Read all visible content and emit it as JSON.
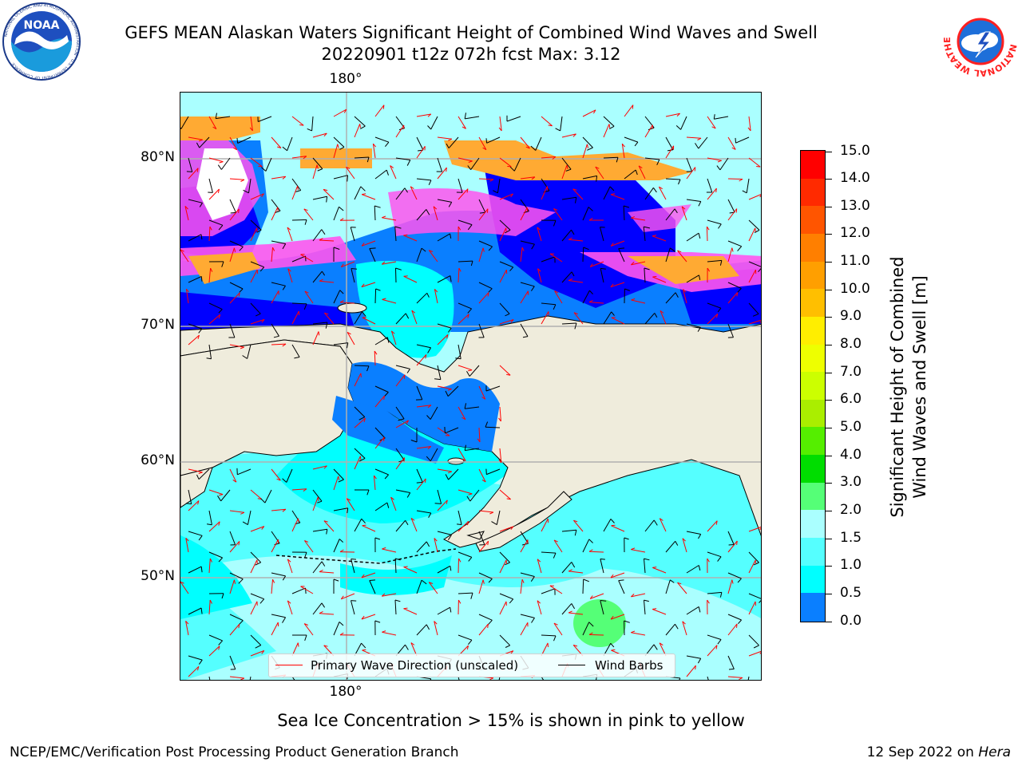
{
  "header": {
    "title_line1": "GEFS MEAN Alaskan Waters Significant Height of Combined Wind Waves and Swell",
    "title_line2": "20220901 t12z 072h fcst   Max: 3.12"
  },
  "logos": {
    "left": "NOAA",
    "left_ring_text": "NATIONAL OCEANIC AND ATMOSPHERIC ADMINISTRATION · U.S. DEPARTMENT OF COMMERCE",
    "right_ring_text": "NATIONAL WEATHER SERVICE"
  },
  "map": {
    "lon_label_top": "180°",
    "lon_label_bottom": "180°",
    "lat_labels": [
      "80°N",
      "70°N",
      "60°N",
      "50°N"
    ],
    "max_value": 3.12,
    "colors": {
      "land": "#efecdc",
      "ice_pink": "#ff55ee",
      "ice_orange": "#ffaa33",
      "wave_0_0.5": "#0000ff",
      "wave_0.5_1.0": "#0a7fff",
      "wave_1.0_1.5": "#00ffff",
      "wave_1.5_2.0": "#55ffff",
      "wave_2.0_3.0": "#aaffff",
      "wave_3.0_4.0": "#55ff77",
      "arrow": "#ff0000",
      "barb": "#000000"
    },
    "legend": {
      "wave_direction": "Primary Wave Direction (unscaled)",
      "wind_barbs": "Wind Barbs"
    }
  },
  "colorbar": {
    "title_line1": "Significant Height of Combined",
    "title_line2": "Wind Waves and Swell [m]",
    "tick_labels": [
      "15.0",
      "14.0",
      "13.0",
      "12.0",
      "11.0",
      "10.0",
      "9.0",
      "8.0",
      "7.0",
      "6.0",
      "5.0",
      "4.0",
      "3.0",
      "2.0",
      "1.5",
      "1.0",
      "0.5",
      "0.0"
    ],
    "colors": [
      "#ff0000",
      "#ff2a00",
      "#ff5500",
      "#ff7f00",
      "#ff9f00",
      "#ffbf00",
      "#ffee00",
      "#eeff00",
      "#ccff00",
      "#aaee00",
      "#55ee00",
      "#00dd00",
      "#55ff77",
      "#aaffff",
      "#55ffff",
      "#00ffff",
      "#0a7fff",
      "#0000ff"
    ]
  },
  "caption": "Sea Ice Concentration > 15% is shown in pink to yellow",
  "footer": {
    "left": "NCEP/EMC/Verification Post Processing Product Generation Branch",
    "right_date": "12 Sep 2022 on ",
    "right_host": "Hera"
  }
}
